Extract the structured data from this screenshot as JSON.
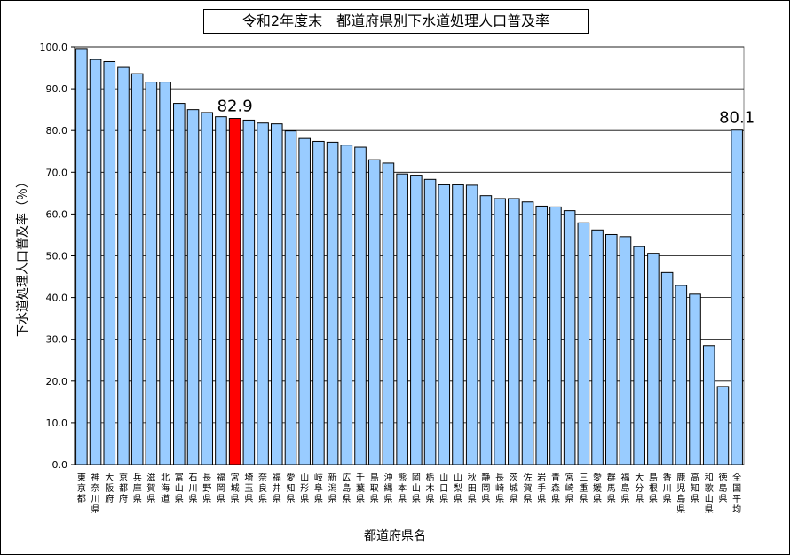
{
  "chart_data": {
    "type": "bar",
    "title": "令和2年度末　都道府県別下水道処理人口普及率",
    "xlabel": "都道府県名",
    "ylabel": "下水道処理人口普及率（％）",
    "ylim": [
      0,
      100
    ],
    "yticks": [
      "0.0",
      "10.0",
      "20.0",
      "30.0",
      "40.0",
      "50.0",
      "60.0",
      "70.0",
      "80.0",
      "90.0",
      "100.0"
    ],
    "grid": true,
    "categories": [
      "東京都",
      "神奈川県",
      "大阪府",
      "京都府",
      "兵庫県",
      "滋賀県",
      "北海道",
      "富山県",
      "石川県",
      "長野県",
      "福岡県",
      "宮城県",
      "埼玉県",
      "奈良県",
      "福井県",
      "愛知県",
      "山形県",
      "岐阜県",
      "新潟県",
      "広島県",
      "千葉県",
      "鳥取県",
      "沖縄県",
      "熊本県",
      "岡山県",
      "栃木県",
      "山口県",
      "山梨県",
      "秋田県",
      "静岡県",
      "長崎県",
      "茨城県",
      "佐賀県",
      "岩手県",
      "青森県",
      "宮崎県",
      "三重県",
      "愛媛県",
      "群馬県",
      "福島県",
      "大分県",
      "島根県",
      "香川県",
      "鹿児島県",
      "高知県",
      "和歌山県",
      "徳島県",
      "全国平均"
    ],
    "values": [
      99.6,
      97.0,
      96.5,
      95.1,
      93.6,
      91.6,
      91.6,
      86.5,
      85.0,
      84.3,
      83.3,
      82.9,
      82.5,
      81.8,
      81.6,
      79.9,
      78.1,
      77.4,
      77.2,
      76.5,
      76.0,
      73.0,
      72.2,
      69.6,
      69.3,
      68.3,
      67.0,
      67.0,
      66.9,
      64.4,
      63.7,
      63.7,
      62.9,
      61.9,
      61.7,
      60.8,
      57.9,
      56.2,
      55.1,
      54.6,
      52.2,
      50.6,
      46.0,
      42.9,
      40.8,
      28.5,
      18.7,
      80.1
    ],
    "highlighted": [
      {
        "category": "宮城県",
        "label": "82.9",
        "color": "#ff0000"
      },
      {
        "category": "全国平均",
        "label": "80.1",
        "color": "#99ccff"
      }
    ],
    "bar_color": "#99ccff"
  }
}
